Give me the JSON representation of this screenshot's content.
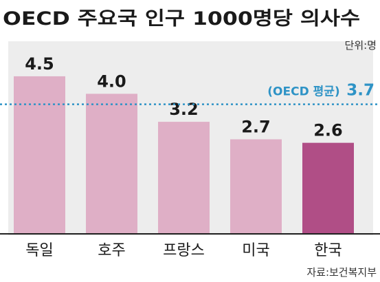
{
  "chart_data": {
    "type": "bar",
    "title": "OECD 주요국 인구 1000명당 의사수",
    "unit_label": "단위:명",
    "categories": [
      "독일",
      "호주",
      "프랑스",
      "미국",
      "한국"
    ],
    "values": [
      4.5,
      4.0,
      3.2,
      2.7,
      2.6
    ],
    "value_labels": [
      "4.5",
      "4.0",
      "3.2",
      "2.7",
      "2.6"
    ],
    "highlight_category": "한국",
    "reference_line": {
      "label": "(OECD 평균)",
      "value": 3.7,
      "value_label": "3.7"
    },
    "source": "자료:보건복지부",
    "ylim": [
      0,
      5.5
    ],
    "grid": false,
    "colors": {
      "bar": "#dfafc6",
      "bar_highlight": "#b04e86",
      "reference": "#2e93c6",
      "plot_background": "#ededed",
      "text": "#1a1a1a"
    }
  }
}
